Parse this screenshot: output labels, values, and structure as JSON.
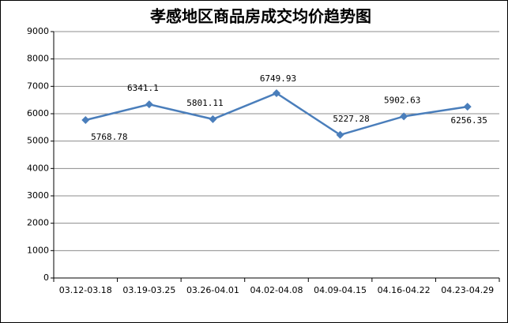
{
  "chart_data": {
    "type": "line",
    "title": "孝感地区商品房成交均价趋势图",
    "categories": [
      "03.12-03.18",
      "03.19-03.25",
      "03.26-04.01",
      "04.02-04.08",
      "04.09-04.15",
      "04.16-04.22",
      "04.23-04.29"
    ],
    "series": [
      {
        "name": "成交均价",
        "color": "#4a7ebb",
        "values": [
          5768.78,
          6341.1,
          5801.11,
          6749.93,
          5227.28,
          5902.63,
          6256.35
        ]
      }
    ],
    "ylim": [
      0,
      9000
    ],
    "yticks": [
      0,
      1000,
      2000,
      3000,
      4000,
      5000,
      6000,
      7000,
      8000,
      9000
    ],
    "grid": true
  }
}
